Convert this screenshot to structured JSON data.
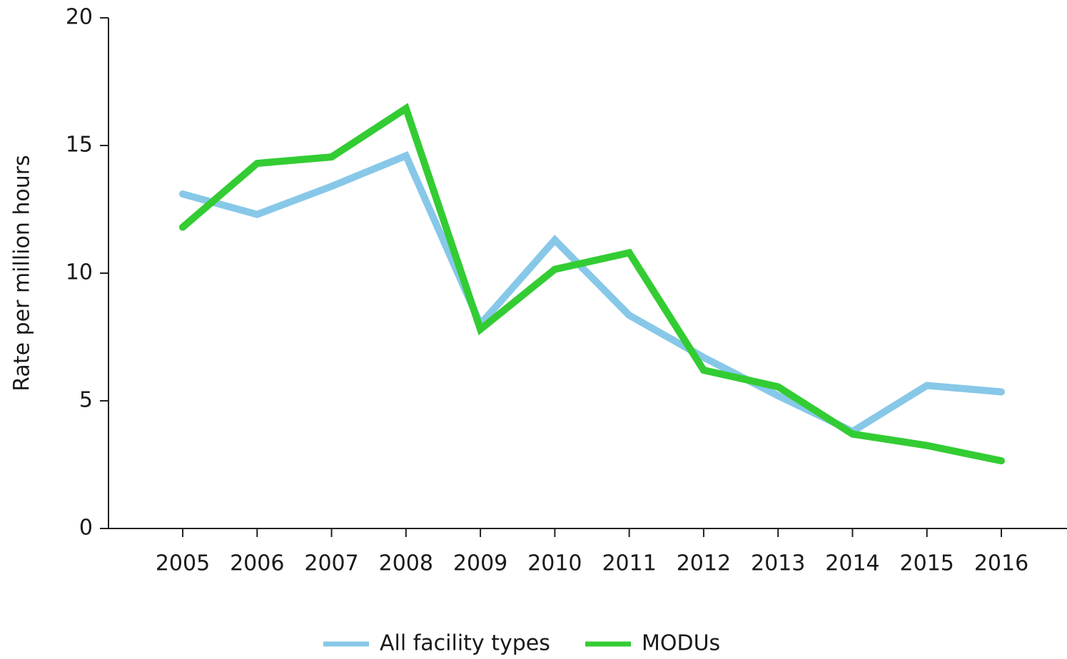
{
  "chart_data": {
    "type": "line",
    "y_label": "Rate per million hours",
    "categories": [
      "2005",
      "2006",
      "2007",
      "2008",
      "2009",
      "2010",
      "2011",
      "2012",
      "2013",
      "2014",
      "2015",
      "2016"
    ],
    "series": [
      {
        "name": "All facility types",
        "color": "#87c8e8",
        "values": [
          13.1,
          12.3,
          13.4,
          14.6,
          8.0,
          11.3,
          8.35,
          6.7,
          5.2,
          3.8,
          5.6,
          5.35
        ]
      },
      {
        "name": "MODUs",
        "color": "#33cc33",
        "values": [
          11.8,
          14.3,
          14.55,
          16.45,
          7.8,
          10.15,
          10.8,
          6.2,
          5.55,
          3.7,
          3.25,
          2.65
        ]
      }
    ],
    "ylim": [
      0,
      20
    ],
    "yticks": [
      0,
      5,
      10,
      15,
      20
    ],
    "grid": false,
    "legend": "bottom"
  }
}
